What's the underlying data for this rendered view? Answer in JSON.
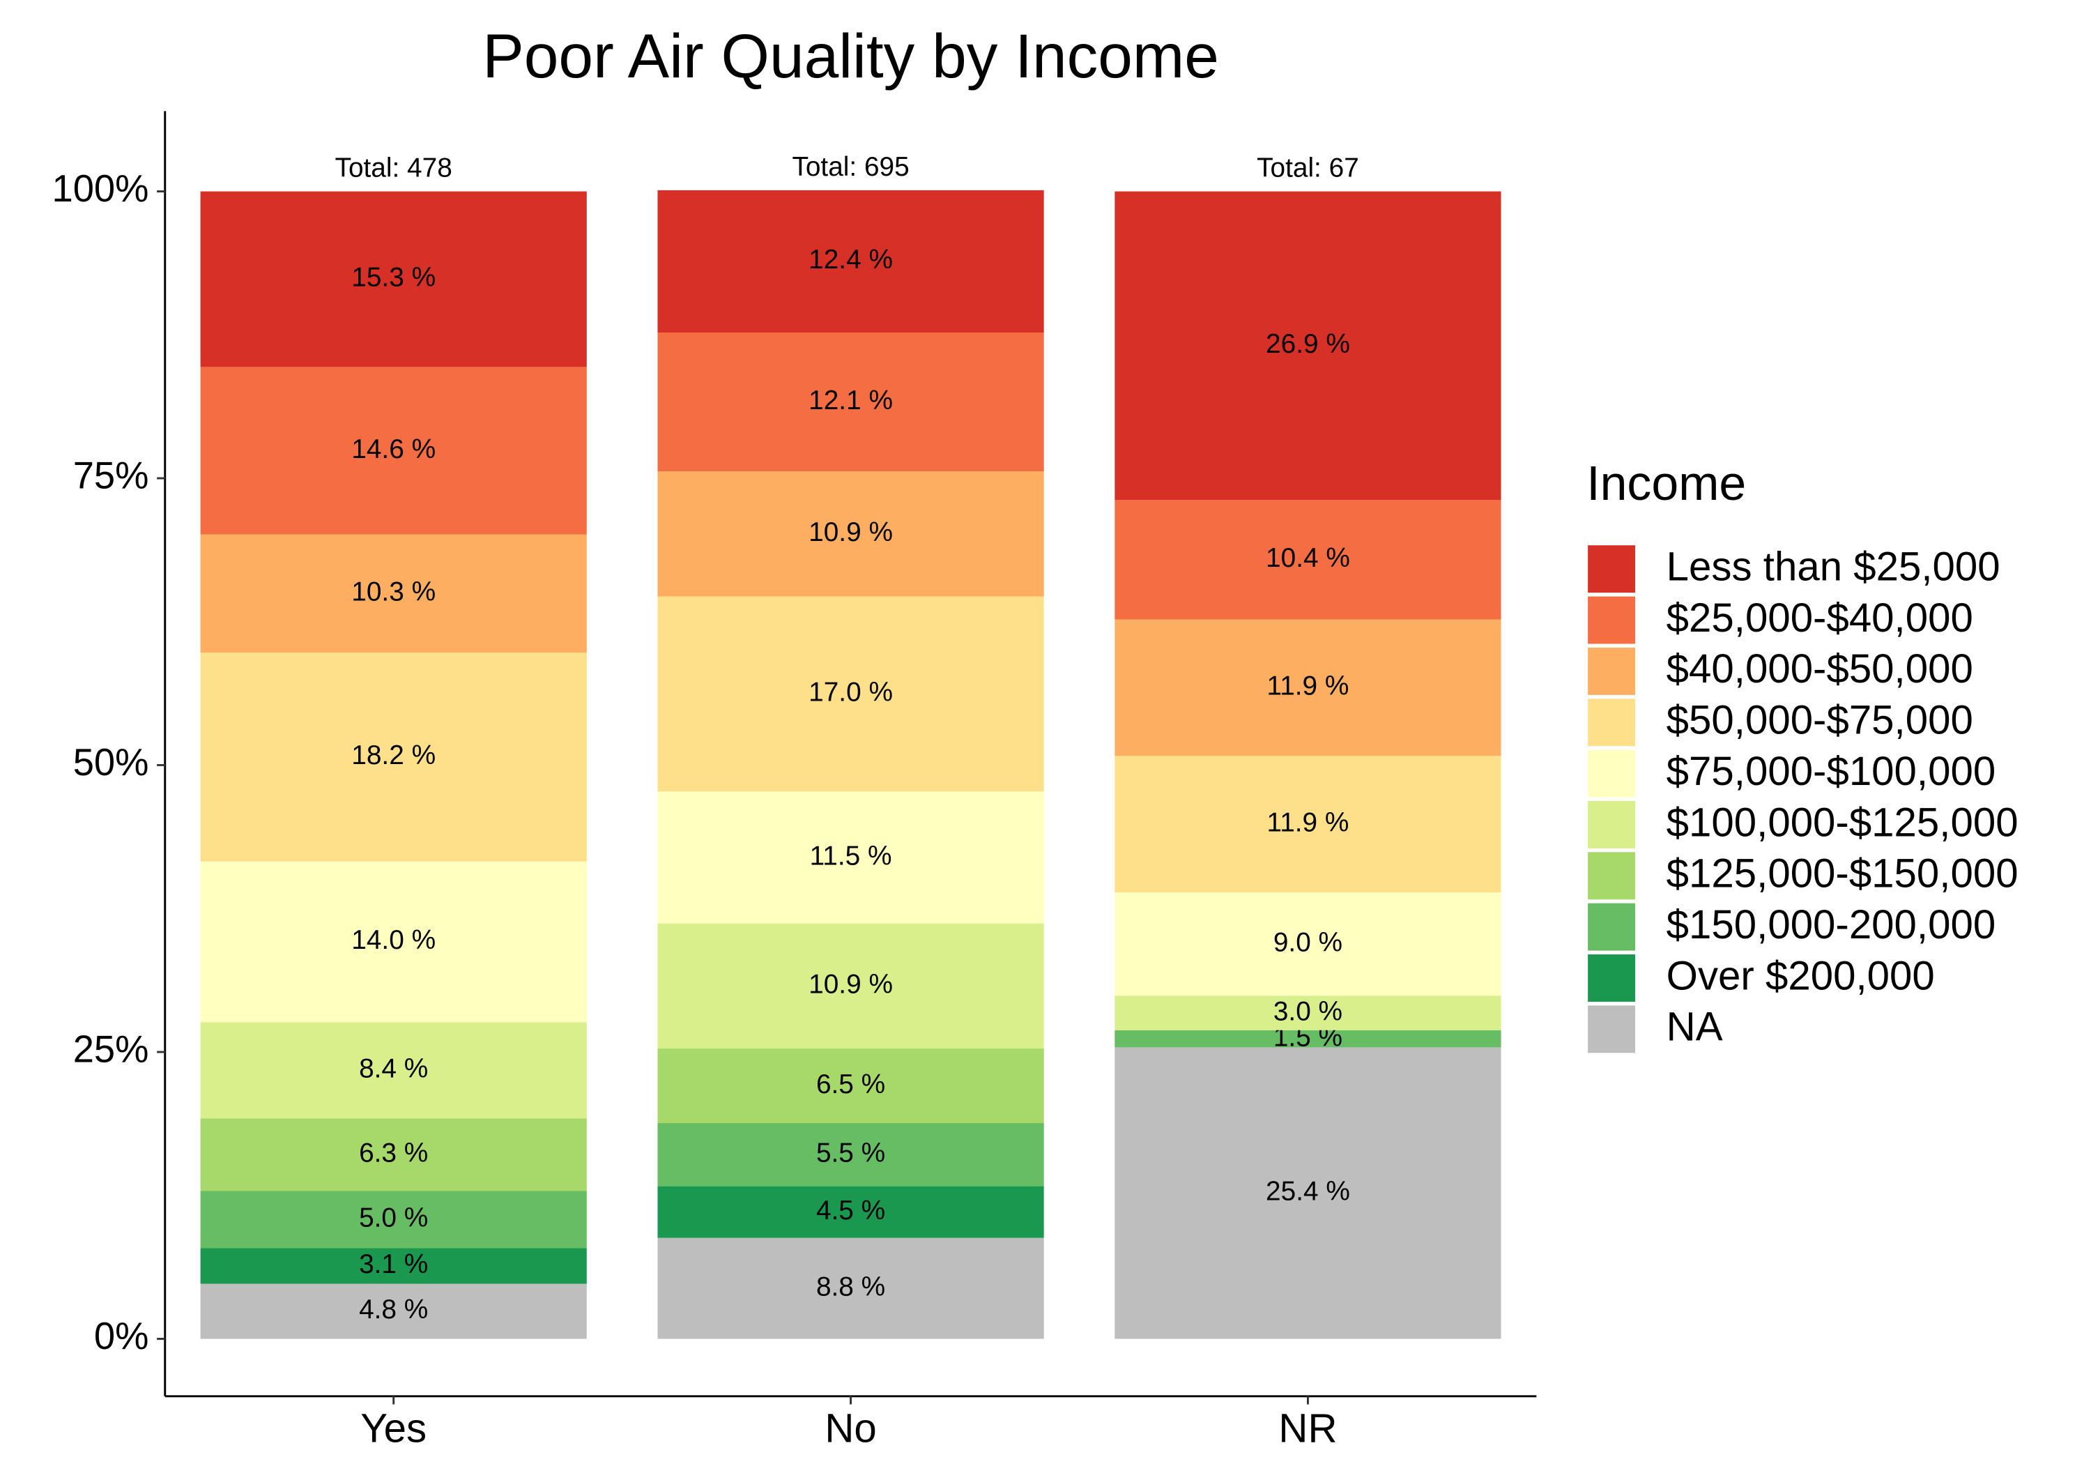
{
  "chart_data": {
    "type": "stacked_bar",
    "title": "Poor Air Quality by Income",
    "categories": [
      "Yes",
      "No",
      "NR"
    ],
    "annotations": [
      "Total:  478",
      "Total:  695",
      "Total:  67"
    ],
    "legend_title": "Income",
    "legend_position": "right",
    "ylim": [
      -5,
      107
    ],
    "yticks": [
      {
        "value": 0,
        "label": "0%"
      },
      {
        "value": 25,
        "label": "25%"
      },
      {
        "value": 50,
        "label": "50%"
      },
      {
        "value": 75,
        "label": "75%"
      },
      {
        "value": 100,
        "label": "100%"
      }
    ],
    "series": [
      {
        "name": "Less than $25,000",
        "color": "#d73027",
        "values": [
          15.3,
          12.4,
          26.9
        ],
        "value_labels": [
          "15.3 %",
          "12.4 %",
          "26.9 %"
        ]
      },
      {
        "name": "$25,000-$40,000",
        "color": "#f46d43",
        "values": [
          14.6,
          12.1,
          10.4
        ],
        "value_labels": [
          "14.6 %",
          "12.1 %",
          "10.4 %"
        ]
      },
      {
        "name": "$40,000-$50,000",
        "color": "#fdae61",
        "values": [
          10.3,
          10.9,
          11.9
        ],
        "value_labels": [
          "10.3 %",
          "10.9 %",
          "11.9 %"
        ]
      },
      {
        "name": "$50,000-$75,000",
        "color": "#fee08b",
        "values": [
          18.2,
          17.0,
          11.9
        ],
        "value_labels": [
          "18.2 %",
          "17.0 %",
          "11.9 %"
        ]
      },
      {
        "name": "$75,000-$100,000",
        "color": "#ffffbf",
        "values": [
          14.0,
          11.5,
          9.0
        ],
        "value_labels": [
          "14.0 %",
          "11.5 %",
          "9.0 %"
        ]
      },
      {
        "name": "$100,000-$125,000",
        "color": "#d9ef8b",
        "values": [
          8.4,
          10.9,
          3.0
        ],
        "value_labels": [
          "8.4 %",
          "10.9 %",
          "3.0 %"
        ]
      },
      {
        "name": "$125,000-$150,000",
        "color": "#a6d96a",
        "values": [
          6.3,
          6.5,
          null
        ],
        "value_labels": [
          "6.3 %",
          "6.5 %",
          null
        ]
      },
      {
        "name": "$150,000-200,000",
        "color": "#66bd63",
        "values": [
          5.0,
          5.5,
          1.5
        ],
        "value_labels": [
          "5.0 %",
          "5.5 %",
          "1.5 %"
        ]
      },
      {
        "name": "Over $200,000",
        "color": "#1a9850",
        "values": [
          3.1,
          4.5,
          null
        ],
        "value_labels": [
          "3.1 %",
          "4.5 %",
          null
        ]
      },
      {
        "name": "NA",
        "color": "#bebebe",
        "values": [
          4.8,
          8.8,
          25.4
        ],
        "value_labels": [
          "4.8 %",
          "8.8 %",
          "25.4 %"
        ]
      }
    ]
  }
}
